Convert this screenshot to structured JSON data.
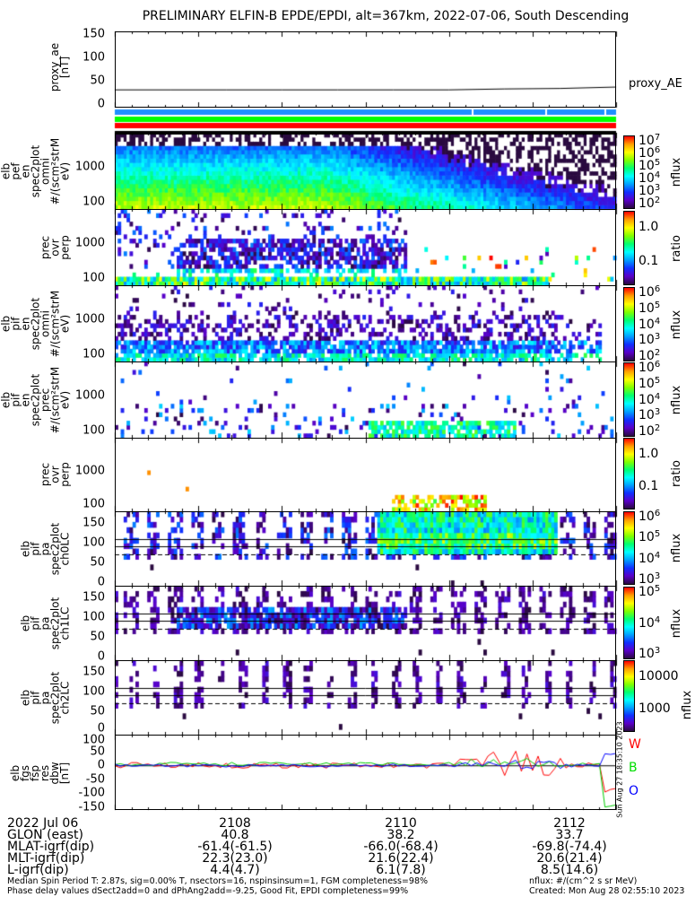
{
  "title": "PRELIMINARY ELFIN-B EPDE/EPDI, alt=367km, 2022-07-06, South Descending",
  "proxy_ae": {
    "ylabel": [
      "proxy_ae",
      "[nT]"
    ],
    "yticks": [
      "150",
      "100",
      "50",
      "0"
    ],
    "legend": "proxy_AE",
    "ylim": [
      0,
      150
    ],
    "values": [
      30,
      30,
      30,
      30,
      30,
      30,
      30,
      32,
      33,
      36
    ]
  },
  "status_bar_colors": [
    "#1e90ff",
    "#00ff00",
    "#ff0000",
    "#000000"
  ],
  "panels": [
    {
      "ylabel": [
        "elb",
        "pef",
        "en",
        "spec2plot",
        "omni",
        "#/(scm²strMeV)"
      ],
      "yticks": [
        "1000",
        "100"
      ],
      "scale": "log",
      "ylim": [
        62,
        9500
      ],
      "cbar": {
        "unit": "nflux",
        "ticks": [
          {
            "b": "10",
            "e": "7"
          },
          {
            "b": "10",
            "e": "6"
          },
          {
            "b": "10",
            "e": "5"
          },
          {
            "b": "10",
            "e": "4"
          },
          {
            "b": "10",
            "e": "3"
          },
          {
            "b": "10",
            "e": "2"
          }
        ]
      }
    },
    {
      "ylabel": [
        "prec",
        "ovr",
        "perp"
      ],
      "yticks": [
        "1000",
        "100"
      ],
      "scale": "log",
      "ylim": [
        62,
        9500
      ],
      "cbar": {
        "unit": "ratio",
        "ticks": [
          {
            "b": "1.0",
            "e": ""
          },
          {
            "b": "0.1",
            "e": ""
          }
        ]
      }
    },
    {
      "ylabel": [
        "elb",
        "pif",
        "en",
        "spec2plot",
        "omni",
        "#/(scm²strMeV)"
      ],
      "yticks": [
        "1000",
        "100"
      ],
      "scale": "log",
      "ylim": [
        62,
        9500
      ],
      "cbar": {
        "unit": "nflux",
        "ticks": [
          {
            "b": "10",
            "e": "6"
          },
          {
            "b": "10",
            "e": "5"
          },
          {
            "b": "10",
            "e": "4"
          },
          {
            "b": "10",
            "e": "3"
          },
          {
            "b": "10",
            "e": "2"
          }
        ]
      }
    },
    {
      "ylabel": [
        "elb",
        "pif",
        "en",
        "spec2plot",
        "prec",
        "#/(scm²strMeV)"
      ],
      "yticks": [
        "1000",
        "100"
      ],
      "scale": "log",
      "ylim": [
        62,
        9500
      ],
      "cbar": {
        "unit": "nflux",
        "ticks": [
          {
            "b": "10",
            "e": "6"
          },
          {
            "b": "10",
            "e": "5"
          },
          {
            "b": "10",
            "e": "4"
          },
          {
            "b": "10",
            "e": "3"
          },
          {
            "b": "10",
            "e": "2"
          }
        ]
      }
    },
    {
      "ylabel": [
        "prec",
        "ovr",
        "perp"
      ],
      "yticks": [
        "1000",
        "100"
      ],
      "scale": "log",
      "ylim": [
        62,
        9500
      ],
      "cbar": {
        "unit": "ratio",
        "ticks": [
          {
            "b": "1.0",
            "e": ""
          },
          {
            "b": "0.1",
            "e": ""
          }
        ]
      }
    },
    {
      "ylabel": [
        "elb",
        "pif",
        "pa",
        "spec2plot",
        "ch0LC"
      ],
      "yticks": [
        "150",
        "100",
        "50",
        "0"
      ],
      "scale": "lin",
      "ylim": [
        -10,
        180
      ],
      "cbar": {
        "unit": "nflux",
        "ticks": [
          {
            "b": "10",
            "e": "6"
          },
          {
            "b": "10",
            "e": "5"
          },
          {
            "b": "10",
            "e": "4"
          },
          {
            "b": "10",
            "e": "3"
          }
        ]
      }
    },
    {
      "ylabel": [
        "elb",
        "pif",
        "pa",
        "spec2plot",
        "ch1LC"
      ],
      "yticks": [
        "150",
        "100",
        "50",
        "0"
      ],
      "scale": "lin",
      "ylim": [
        -10,
        180
      ],
      "cbar": {
        "unit": "nflux",
        "ticks": [
          {
            "b": "10",
            "e": "5"
          },
          {
            "b": "10",
            "e": "4"
          },
          {
            "b": "10",
            "e": "3"
          }
        ]
      }
    },
    {
      "ylabel": [
        "elb",
        "pif",
        "pa",
        "spec2plot",
        "ch2LC"
      ],
      "yticks": [
        "150",
        "100",
        "50",
        "0"
      ],
      "scale": "lin",
      "ylim": [
        -10,
        180
      ],
      "cbar": {
        "unit": "nflux",
        "ticks": [
          {
            "b": "10000",
            "e": ""
          },
          {
            "b": "1000",
            "e": ""
          }
        ]
      }
    }
  ],
  "fgs": {
    "ylabel": [
      "elb",
      "fgs",
      "fsp",
      "res",
      "dbw",
      "[nT]"
    ],
    "yticks": [
      "100",
      "50",
      "0",
      "-50",
      "-100",
      "-150"
    ],
    "ylim": [
      -160,
      110
    ],
    "legend": [
      {
        "label": "W",
        "color": "#ff0000"
      },
      {
        "label": "B",
        "color": "#00dd00"
      },
      {
        "label": "O",
        "color": "#0000ff"
      }
    ],
    "stamp": "Sun Aug 27 18:35:10 2023"
  },
  "ephemeris": {
    "rows": [
      {
        "label": "2022 Jul 06",
        "values": [
          "2108",
          "2110",
          "2112"
        ]
      },
      {
        "label": "GLON (east)",
        "values": [
          "40.8",
          "38.2",
          "33.7"
        ]
      },
      {
        "label": "MLAT-igrf(dip)",
        "values": [
          "-61.4(-61.5)",
          "-66.0(-68.4)",
          "-69.8(-74.4)"
        ]
      },
      {
        "label": "MLT-igrf(dip)",
        "values": [
          "22.3(23.0)",
          "21.6(22.4)",
          "20.6(21.4)"
        ]
      },
      {
        "label": "L-igrf(dip)",
        "values": [
          "4.4(4.7)",
          "6.1(7.8)",
          "8.5(14.6)"
        ]
      }
    ]
  },
  "footer": {
    "line1": "Median Spin Period T: 2.87s, sig=0.00% T, nsectors=16, nspinsinsum=1, FGM completeness=98%",
    "line2": "Phase delay values dSect2add=0 and dPhAng2add=-9.25, Good Fit, EPDI completeness=99%",
    "units": "nflux: #/(cm^2 s sr MeV)",
    "created": "Created: Mon Aug 28 02:55:10 2023"
  },
  "chart_data": {
    "type": "heatmap",
    "title": "PRELIMINARY ELFIN-B EPDE/EPDI, alt=367km, 2022-07-06, South Descending",
    "x_ticks": [
      "2108",
      "2110",
      "2112"
    ],
    "panels": [
      "proxy_ae",
      "elb pef en spec2plot omni",
      "prec ovr perp",
      "elb pif en spec2plot omni",
      "elb pif en spec2plot prec",
      "prec ovr perp",
      "elb pif pa spec2plot ch0LC",
      "elb pif pa spec2plot ch1LC",
      "elb pif pa spec2plot ch2LC",
      "elb fgs fsp res dbw"
    ]
  }
}
